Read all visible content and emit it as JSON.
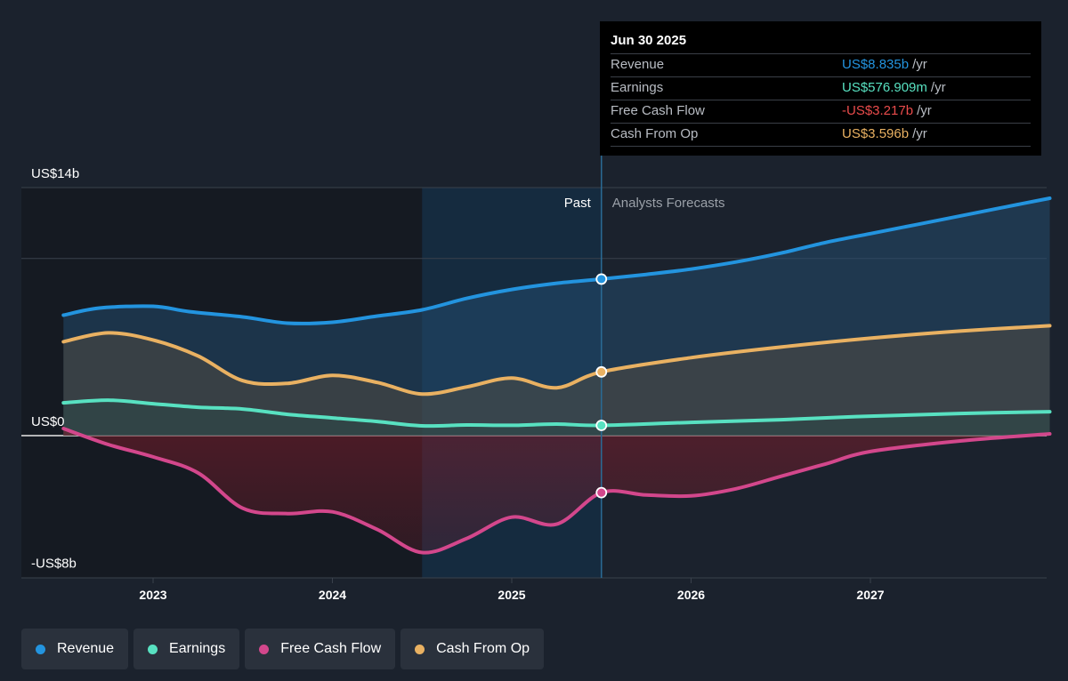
{
  "chart_data": {
    "type": "area",
    "y_axis": {
      "unit": "US$ billions",
      "ylim": [
        -8.5,
        14
      ],
      "labeled_ticks": [
        {
          "value": 14,
          "label": "US$14b"
        },
        {
          "value": 0,
          "label": "US$0"
        },
        {
          "value": -8,
          "label": "-US$8b"
        }
      ],
      "gridlines": [
        14,
        10,
        0
      ]
    },
    "x_axis": {
      "range": [
        2022.5,
        2028.0
      ],
      "ticks": [
        {
          "value": 2023,
          "label": "2023"
        },
        {
          "value": 2024,
          "label": "2024"
        },
        {
          "value": 2025,
          "label": "2025"
        },
        {
          "value": 2026,
          "label": "2026"
        },
        {
          "value": 2027,
          "label": "2027"
        }
      ]
    },
    "sections": {
      "past_label": "Past",
      "forecast_label": "Analysts Forecasts",
      "past_highlight_start": 2024.5,
      "divider_x": 2025.5
    },
    "series": [
      {
        "name": "Revenue",
        "color": "#2394df",
        "points": [
          [
            2022.5,
            6.8
          ],
          [
            2022.7,
            7.2
          ],
          [
            2023.0,
            7.3
          ],
          [
            2023.2,
            7.0
          ],
          [
            2023.5,
            6.7
          ],
          [
            2023.75,
            6.35
          ],
          [
            2024.0,
            6.4
          ],
          [
            2024.25,
            6.75
          ],
          [
            2024.5,
            7.1
          ],
          [
            2024.75,
            7.75
          ],
          [
            2025.0,
            8.25
          ],
          [
            2025.25,
            8.6
          ],
          [
            2025.5,
            8.835
          ],
          [
            2025.75,
            9.1
          ],
          [
            2026.0,
            9.4
          ],
          [
            2026.25,
            9.8
          ],
          [
            2026.5,
            10.3
          ],
          [
            2026.75,
            10.9
          ],
          [
            2027.0,
            11.4
          ],
          [
            2027.25,
            11.9
          ],
          [
            2027.5,
            12.4
          ],
          [
            2027.75,
            12.9
          ],
          [
            2028.0,
            13.4
          ]
        ]
      },
      {
        "name": "Earnings",
        "color": "#58e1c1",
        "points": [
          [
            2022.5,
            1.85
          ],
          [
            2022.75,
            2.0
          ],
          [
            2023.0,
            1.8
          ],
          [
            2023.25,
            1.6
          ],
          [
            2023.5,
            1.5
          ],
          [
            2023.75,
            1.2
          ],
          [
            2024.0,
            1.0
          ],
          [
            2024.25,
            0.8
          ],
          [
            2024.5,
            0.55
          ],
          [
            2024.75,
            0.6
          ],
          [
            2025.0,
            0.58
          ],
          [
            2025.25,
            0.65
          ],
          [
            2025.5,
            0.577
          ],
          [
            2026.0,
            0.75
          ],
          [
            2026.5,
            0.9
          ],
          [
            2027.0,
            1.1
          ],
          [
            2027.5,
            1.25
          ],
          [
            2028.0,
            1.35
          ]
        ]
      },
      {
        "name": "Free Cash Flow",
        "color": "#d3478c",
        "points": [
          [
            2022.5,
            0.4
          ],
          [
            2022.75,
            -0.5
          ],
          [
            2023.0,
            -1.2
          ],
          [
            2023.25,
            -2.1
          ],
          [
            2023.5,
            -4.1
          ],
          [
            2023.75,
            -4.4
          ],
          [
            2024.0,
            -4.3
          ],
          [
            2024.25,
            -5.3
          ],
          [
            2024.5,
            -6.6
          ],
          [
            2024.75,
            -5.8
          ],
          [
            2025.0,
            -4.6
          ],
          [
            2025.25,
            -5.0
          ],
          [
            2025.5,
            -3.217
          ],
          [
            2025.75,
            -3.35
          ],
          [
            2026.0,
            -3.4
          ],
          [
            2026.25,
            -3.0
          ],
          [
            2026.5,
            -2.3
          ],
          [
            2026.75,
            -1.6
          ],
          [
            2027.0,
            -0.9
          ],
          [
            2027.5,
            -0.3
          ],
          [
            2028.0,
            0.1
          ]
        ]
      },
      {
        "name": "Cash From Op",
        "color": "#e9b162",
        "points": [
          [
            2022.5,
            5.3
          ],
          [
            2022.75,
            5.8
          ],
          [
            2023.0,
            5.4
          ],
          [
            2023.25,
            4.5
          ],
          [
            2023.5,
            3.1
          ],
          [
            2023.75,
            2.95
          ],
          [
            2024.0,
            3.4
          ],
          [
            2024.25,
            3.0
          ],
          [
            2024.5,
            2.35
          ],
          [
            2024.75,
            2.75
          ],
          [
            2025.0,
            3.25
          ],
          [
            2025.25,
            2.7
          ],
          [
            2025.5,
            3.596
          ],
          [
            2026.0,
            4.4
          ],
          [
            2026.5,
            5.0
          ],
          [
            2027.0,
            5.5
          ],
          [
            2027.5,
            5.9
          ],
          [
            2028.0,
            6.2
          ]
        ]
      }
    ]
  },
  "tooltip": {
    "date": "Jun 30 2025",
    "rows": [
      {
        "name": "Revenue",
        "value": "US$8.835b",
        "unit": "/yr",
        "color": "#2394df"
      },
      {
        "name": "Earnings",
        "value": "US$576.909m",
        "unit": "/yr",
        "color": "#58e1c1"
      },
      {
        "name": "Free Cash Flow",
        "value": "-US$3.217b",
        "unit": "/yr",
        "color": "#e94b4b"
      },
      {
        "name": "Cash From Op",
        "value": "US$3.596b",
        "unit": "/yr",
        "color": "#e9b162"
      }
    ]
  },
  "legend": [
    {
      "label": "Revenue",
      "color": "#2394df"
    },
    {
      "label": "Earnings",
      "color": "#58e1c1"
    },
    {
      "label": "Free Cash Flow",
      "color": "#d3478c"
    },
    {
      "label": "Cash From Op",
      "color": "#e9b162"
    }
  ]
}
